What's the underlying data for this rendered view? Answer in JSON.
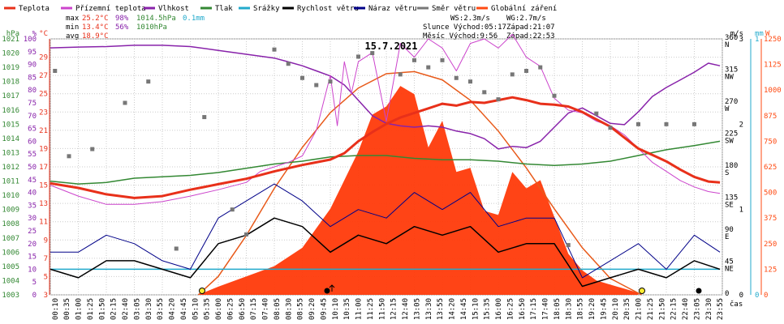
{
  "chart_data": {
    "type": "line",
    "title": "15.7.2021",
    "x_unit": "čas",
    "x_range": [
      "00:00",
      "24:00"
    ],
    "x_ticks": [
      "00:10",
      "00:35",
      "01:00",
      "01:25",
      "01:50",
      "02:15",
      "02:40",
      "03:05",
      "03:30",
      "03:55",
      "04:20",
      "04:45",
      "05:10",
      "05:35",
      "06:00",
      "06:25",
      "06:50",
      "07:15",
      "07:40",
      "08:05",
      "08:30",
      "08:55",
      "09:20",
      "09:45",
      "10:10",
      "10:35",
      "11:00",
      "11:25",
      "11:50",
      "12:15",
      "12:40",
      "13:05",
      "13:30",
      "13:55",
      "14:20",
      "14:45",
      "15:10",
      "15:35",
      "16:00",
      "16:25",
      "16:50",
      "17:15",
      "17:40",
      "18:05",
      "18:30",
      "18:55",
      "19:20",
      "19:45",
      "20:10",
      "20:35",
      "21:00",
      "21:25",
      "21:50",
      "22:15",
      "22:40",
      "23:05",
      "23:30",
      "23:55"
    ],
    "legend": [
      {
        "label": "Teplota",
        "color": "#e8301a"
      },
      {
        "label": "Přízemní teplota",
        "color": "#cc44cc"
      },
      {
        "label": "Vlhkost",
        "color": "#8822aa"
      },
      {
        "label": "Tlak",
        "color": "#338833"
      },
      {
        "label": "Srážky",
        "color": "#22aacc"
      },
      {
        "label": "Rychlost větru",
        "color": "#000000"
      },
      {
        "label": "Náraz větru",
        "color": "#000088"
      },
      {
        "label": "Směr větru",
        "color": "#777777"
      },
      {
        "label": "Globální záření",
        "color": "#ff4a12"
      }
    ],
    "stats": {
      "max": {
        "label": "max",
        "temp": "25.2°C",
        "hum": "98%",
        "press": "1014.5hPa",
        "rain": "0.1mm"
      },
      "min": {
        "label": "min",
        "temp": "13.4°C",
        "hum": "56%",
        "press": "1010hPa"
      },
      "avg": {
        "label": "avg",
        "temp": "18.9°C"
      }
    },
    "info": {
      "ws": "WS:2.3m/s",
      "wg": "WG:2.7m/s",
      "slunce": "Slunce Východ:05:17",
      "slunce_zapad": "Západ:21:07",
      "mesic": "Měsíc Východ:9:56",
      "mesic_zapad": "Západ:22:53"
    },
    "axes": {
      "pressure": {
        "unit": "hPa",
        "range": [
          1003,
          1021
        ],
        "ticks": [
          "1003",
          "1004",
          "1005",
          "1006",
          "1007",
          "1008",
          "1009",
          "1010",
          "1011",
          "1012",
          "1013",
          "1014",
          "1015",
          "1016",
          "1017",
          "1018",
          "1019",
          "1020",
          "1021"
        ]
      },
      "humidity": {
        "unit": "%",
        "range": [
          0,
          100
        ],
        "ticks": [
          "0",
          "5",
          "10",
          "15",
          "20",
          "25",
          "30",
          "35",
          "40",
          "45",
          "50",
          "55",
          "60",
          "65",
          "70",
          "75",
          "80",
          "85",
          "90",
          "95",
          "100"
        ]
      },
      "temperature": {
        "unit": "°C",
        "range": [
          3,
          31
        ],
        "ticks": [
          "3",
          "5",
          "7",
          "9",
          "11",
          "13",
          "15",
          "17",
          "19",
          "21",
          "23",
          "25",
          "27",
          "29"
        ]
      },
      "wind_speed": {
        "unit": "m/s",
        "range": [
          0,
          3
        ],
        "ticks": [
          "0",
          "1",
          "2",
          "3"
        ]
      },
      "rain": {
        "unit": "mm",
        "range": [
          0,
          1
        ],
        "ticks": [
          "0",
          "1"
        ]
      },
      "wind_dir": {
        "unit": "",
        "ticks": [
          "0",
          "45 NE",
          "90 E",
          "135 SE",
          "180 S",
          "225 SW",
          "270 W",
          "315 NW",
          "360 N"
        ]
      },
      "radiation": {
        "unit": "W",
        "range": [
          0,
          1250
        ],
        "ticks": [
          "0",
          "125",
          "250",
          "375",
          "500",
          "625",
          "750",
          "875",
          "1000",
          "1125",
          "1250"
        ]
      }
    },
    "series": [
      {
        "name": "Teplota",
        "unit": "°C",
        "x": [
          "00:00",
          "01:00",
          "02:00",
          "03:00",
          "04:00",
          "05:00",
          "06:00",
          "07:00",
          "08:00",
          "09:00",
          "10:00",
          "10:30",
          "11:00",
          "11:30",
          "12:00",
          "12:30",
          "13:00",
          "13:30",
          "14:00",
          "14:30",
          "15:00",
          "15:30",
          "16:00",
          "16:30",
          "17:00",
          "17:30",
          "18:00",
          "18:30",
          "19:00",
          "19:30",
          "20:00",
          "20:30",
          "21:00",
          "21:30",
          "22:00",
          "22:30",
          "23:00",
          "23:30",
          "23:55"
        ],
        "values": [
          15.2,
          14.7,
          14.0,
          13.6,
          13.8,
          14.5,
          15.1,
          15.7,
          16.5,
          17.2,
          17.8,
          18.5,
          19.8,
          20.8,
          21.7,
          22.4,
          22.9,
          23.4,
          23.9,
          23.7,
          24.1,
          24.0,
          24.3,
          24.6,
          24.3,
          23.9,
          23.8,
          23.6,
          23.0,
          22.2,
          21.4,
          20.2,
          19.0,
          18.3,
          17.6,
          16.7,
          15.9,
          15.4,
          15.3
        ]
      },
      {
        "name": "Přízemní teplota",
        "unit": "°C",
        "x": [
          "00:00",
          "01:00",
          "02:00",
          "03:00",
          "04:00",
          "05:00",
          "06:00",
          "07:00",
          "07:30",
          "08:00",
          "08:30",
          "09:00",
          "09:30",
          "10:00",
          "10:15",
          "10:30",
          "10:45",
          "11:00",
          "11:30",
          "12:00",
          "12:30",
          "13:00",
          "13:30",
          "14:00",
          "14:30",
          "15:00",
          "15:30",
          "16:00",
          "16:30",
          "17:00",
          "17:30",
          "18:00",
          "18:30",
          "19:00",
          "19:30",
          "20:00",
          "20:30",
          "21:00",
          "21:30",
          "22:00",
          "22:30",
          "23:00",
          "23:30",
          "23:55"
        ],
        "values": [
          15.0,
          13.8,
          12.9,
          12.9,
          13.2,
          13.8,
          14.5,
          15.3,
          16.5,
          17.0,
          17.5,
          18.2,
          21.0,
          27.0,
          21.5,
          28.5,
          25.0,
          28.5,
          29.5,
          22.0,
          30.5,
          29.0,
          31.0,
          30.0,
          27.5,
          30.5,
          31.0,
          30.0,
          31.5,
          29.0,
          28.0,
          24.5,
          23.2,
          22.9,
          22.0,
          21.5,
          20.5,
          19.0,
          17.5,
          16.5,
          15.5,
          14.8,
          14.3,
          14.1
        ]
      },
      {
        "name": "Vlhkost",
        "unit": "%",
        "x": [
          "00:00",
          "01:00",
          "02:00",
          "03:00",
          "04:00",
          "05:00",
          "06:00",
          "07:00",
          "08:00",
          "08:30",
          "09:00",
          "09:30",
          "10:00",
          "10:30",
          "11:00",
          "11:30",
          "12:00",
          "12:30",
          "13:00",
          "13:30",
          "14:00",
          "14:30",
          "15:00",
          "15:30",
          "16:00",
          "16:30",
          "17:00",
          "17:30",
          "18:00",
          "18:30",
          "19:00",
          "19:30",
          "20:00",
          "20:30",
          "21:00",
          "21:30",
          "22:00",
          "22:30",
          "23:00",
          "23:30",
          "23:55"
        ],
        "values": [
          96.5,
          96.8,
          97.0,
          97.5,
          97.5,
          97.0,
          95.5,
          94.0,
          92.5,
          91.0,
          89.5,
          87.5,
          85.5,
          82.0,
          76.0,
          70.0,
          67.0,
          66.0,
          65.5,
          66.0,
          65.5,
          64.0,
          63.0,
          61.0,
          57.0,
          58.0,
          57.5,
          60.0,
          65.5,
          71.0,
          73.0,
          70.0,
          67.0,
          66.5,
          71.5,
          77.5,
          81.0,
          84.0,
          87.0,
          90.5,
          89.5
        ]
      },
      {
        "name": "Tlak",
        "unit": "hPa",
        "x": [
          "00:00",
          "01:00",
          "02:00",
          "03:00",
          "04:00",
          "05:00",
          "06:00",
          "07:00",
          "08:00",
          "09:00",
          "10:00",
          "11:00",
          "12:00",
          "13:00",
          "14:00",
          "15:00",
          "16:00",
          "17:00",
          "18:00",
          "19:00",
          "20:00",
          "21:00",
          "22:00",
          "23:00",
          "23:55"
        ],
        "values": [
          1011.0,
          1010.8,
          1010.9,
          1011.2,
          1011.3,
          1011.4,
          1011.6,
          1011.9,
          1012.2,
          1012.4,
          1012.7,
          1012.8,
          1012.8,
          1012.6,
          1012.5,
          1012.5,
          1012.4,
          1012.2,
          1012.1,
          1012.2,
          1012.4,
          1012.8,
          1013.2,
          1013.5,
          1013.8
        ]
      },
      {
        "name": "Globální záření (clear sky)",
        "unit": "W",
        "x": [
          "05:17",
          "06:00",
          "07:00",
          "08:00",
          "09:00",
          "10:00",
          "11:00",
          "12:00",
          "13:00",
          "14:00",
          "15:00",
          "16:00",
          "17:00",
          "18:00",
          "19:00",
          "20:00",
          "21:07"
        ],
        "values": [
          0,
          90,
          290,
          520,
          720,
          890,
          1010,
          1080,
          1090,
          1050,
          950,
          800,
          620,
          420,
          230,
          80,
          0
        ]
      },
      {
        "name": "Globální záření",
        "unit": "W",
        "x": [
          "05:17",
          "06:00",
          "07:00",
          "08:00",
          "09:00",
          "10:00",
          "10:30",
          "11:00",
          "11:30",
          "12:00",
          "12:30",
          "13:00",
          "13:30",
          "14:00",
          "14:30",
          "15:00",
          "15:30",
          "16:00",
          "16:30",
          "17:00",
          "17:30",
          "18:00",
          "18:30",
          "19:00",
          "19:30",
          "20:00",
          "20:30",
          "21:00"
        ],
        "values": [
          0,
          40,
          90,
          140,
          230,
          420,
          560,
          700,
          880,
          920,
          1020,
          980,
          720,
          850,
          600,
          620,
          410,
          390,
          600,
          520,
          560,
          380,
          200,
          120,
          70,
          50,
          30,
          10
        ]
      },
      {
        "name": "Rychlost větru",
        "unit": "m/s",
        "x": [
          "00:00",
          "01:00",
          "02:00",
          "03:00",
          "04:00",
          "05:00",
          "06:00",
          "07:00",
          "08:00",
          "09:00",
          "10:00",
          "11:00",
          "12:00",
          "13:00",
          "14:00",
          "15:00",
          "16:00",
          "17:00",
          "18:00",
          "19:00",
          "20:00",
          "21:00",
          "22:00",
          "23:00",
          "23:55"
        ],
        "values": [
          0.3,
          0.2,
          0.4,
          0.4,
          0.3,
          0.2,
          0.6,
          0.7,
          0.9,
          0.8,
          0.5,
          0.7,
          0.6,
          0.8,
          0.7,
          0.8,
          0.5,
          0.6,
          0.6,
          0.1,
          0.2,
          0.3,
          0.2,
          0.4,
          0.3
        ]
      },
      {
        "name": "Náraz větru",
        "unit": "m/s",
        "x": [
          "00:00",
          "01:00",
          "02:00",
          "03:00",
          "04:00",
          "05:00",
          "06:00",
          "07:00",
          "08:00",
          "09:00",
          "10:00",
          "11:00",
          "12:00",
          "13:00",
          "14:00",
          "15:00",
          "16:00",
          "17:00",
          "18:00",
          "19:00",
          "20:00",
          "21:00",
          "22:00",
          "23:00",
          "23:55"
        ],
        "values": [
          0.5,
          0.5,
          0.7,
          0.6,
          0.4,
          0.3,
          0.9,
          1.1,
          1.3,
          1.1,
          0.8,
          1.0,
          0.9,
          1.2,
          1.0,
          1.2,
          0.8,
          0.9,
          0.9,
          0.2,
          0.4,
          0.6,
          0.3,
          0.7,
          0.5
        ]
      },
      {
        "name": "Srážky",
        "unit": "mm",
        "x": [
          "00:00",
          "23:55"
        ],
        "values": [
          0.1,
          0.1
        ]
      },
      {
        "name": "Směr větru",
        "unit": "°",
        "x": [
          "00:10",
          "00:40",
          "01:30",
          "02:40",
          "03:30",
          "04:30",
          "05:30",
          "06:30",
          "07:00",
          "08:00",
          "08:30",
          "09:00",
          "09:30",
          "10:00",
          "11:00",
          "11:30",
          "12:30",
          "13:00",
          "13:30",
          "14:00",
          "14:30",
          "15:00",
          "15:30",
          "16:00",
          "16:30",
          "17:00",
          "17:30",
          "18:00",
          "18:30",
          "19:30",
          "20:00",
          "21:00",
          "22:00",
          "23:00"
        ],
        "values": [
          315,
          195,
          205,
          270,
          300,
          65,
          250,
          120,
          85,
          345,
          325,
          305,
          295,
          300,
          335,
          340,
          310,
          330,
          320,
          330,
          305,
          300,
          285,
          275,
          310,
          315,
          320,
          280,
          70,
          255,
          235,
          240,
          240,
          240
        ]
      }
    ]
  }
}
